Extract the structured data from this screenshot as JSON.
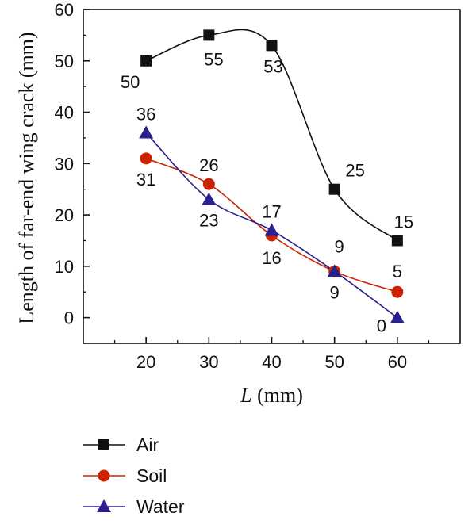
{
  "chart_data": {
    "type": "line",
    "xlabel": "L",
    "xlabel_unit": " (mm)",
    "ylabel": "Length of far-end wing crack (mm)",
    "x": [
      20,
      30,
      40,
      50,
      60
    ],
    "xlim": [
      10,
      70
    ],
    "ylim": [
      -5,
      60
    ],
    "xticks": [
      20,
      30,
      40,
      50,
      60
    ],
    "yticks": [
      0,
      10,
      20,
      30,
      40,
      50,
      60
    ],
    "grid": false,
    "legend_position": "bottom",
    "series": [
      {
        "name": "Air",
        "values": [
          50,
          55,
          53,
          25,
          15
        ],
        "color": "#111111",
        "marker": "square",
        "labels": [
          "50",
          "55",
          "53",
          "25",
          "15"
        ]
      },
      {
        "name": "Soil",
        "values": [
          31,
          26,
          16,
          9,
          5
        ],
        "color": "#cc2200",
        "marker": "circle",
        "labels": [
          "31",
          "26",
          "16",
          "9",
          "5"
        ]
      },
      {
        "name": "Water",
        "values": [
          36,
          23,
          17,
          9,
          0
        ],
        "color": "#2a1f8f",
        "marker": "triangle",
        "labels": [
          "36",
          "23",
          "17",
          "9",
          "0"
        ]
      }
    ]
  }
}
